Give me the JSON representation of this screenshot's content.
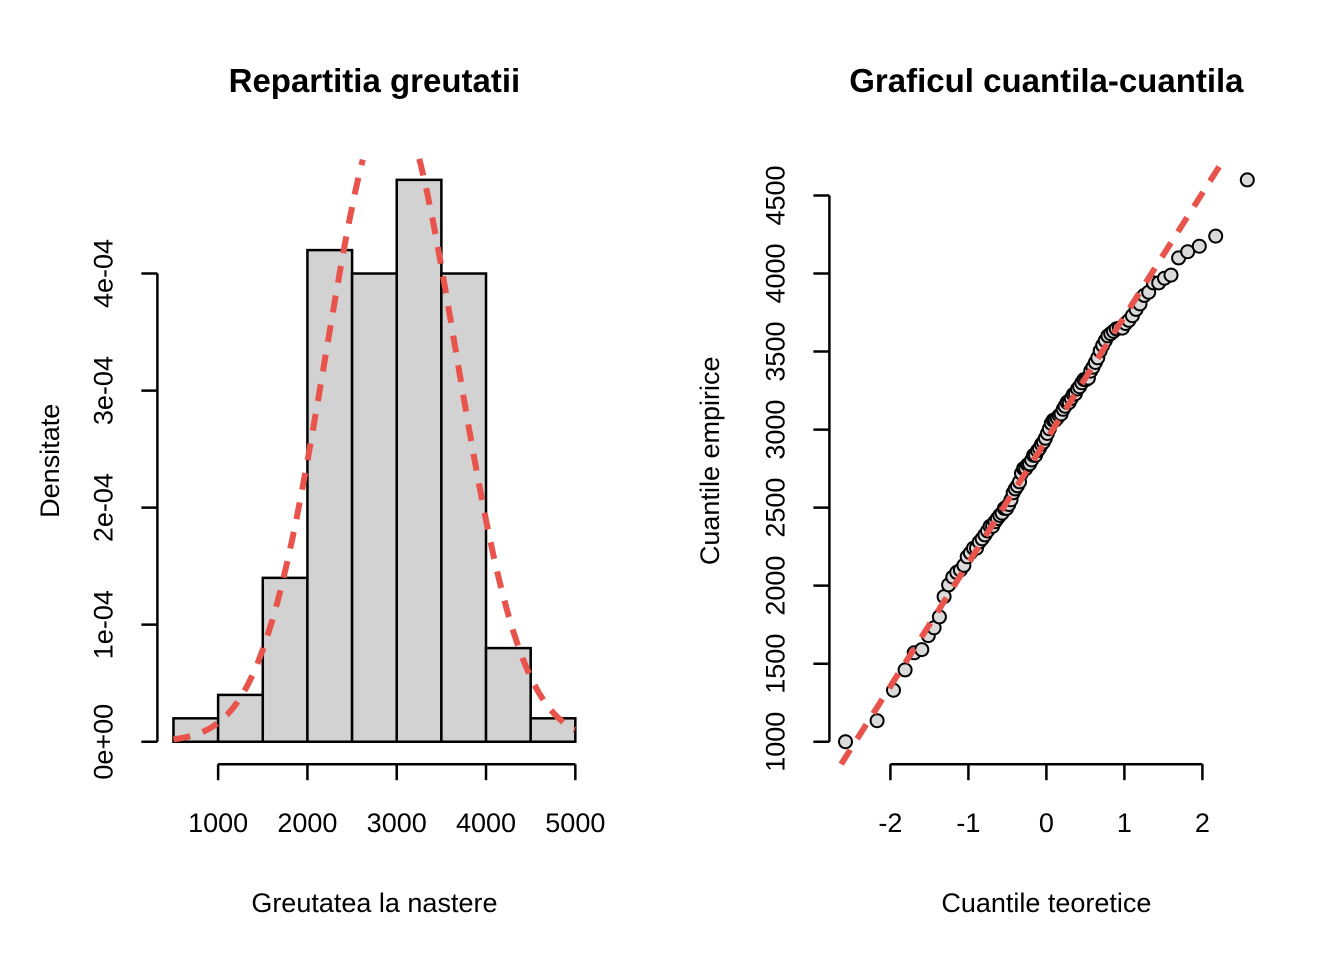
{
  "figure": {
    "background": "#FFFFFF",
    "colors": {
      "bar_fill": "#D2D2D2",
      "bar_border": "#000000",
      "axis": "#000000",
      "dashed_red": "#E8544B",
      "point_fill": "#DADADA",
      "point_border": "#000000"
    }
  },
  "left_panel": {
    "title": "Repartitia greutatii",
    "xlabel": "Greutatea la nastere",
    "ylabel": "Densitate",
    "x_tick_labels": [
      "1000",
      "2000",
      "3000",
      "4000",
      "5000"
    ],
    "y_tick_labels": [
      "0e+00",
      "1e-04",
      "2e-04",
      "3e-04",
      "4e-04"
    ]
  },
  "right_panel": {
    "title": "Graficul cuantila-cuantila",
    "xlabel": "Cuantile teoretice",
    "ylabel": "Cuantile empirice",
    "x_tick_labels": [
      "-2",
      "-1",
      "0",
      "1",
      "2"
    ],
    "y_tick_labels": [
      "1000",
      "1500",
      "2000",
      "2500",
      "3000",
      "3500",
      "4000",
      "4500"
    ]
  },
  "chart_data": [
    {
      "type": "bar",
      "subtype": "histogram-density-with-normal-curve",
      "title": "Repartitia greutatii",
      "xlabel": "Greutatea la nastere",
      "ylabel": "Densitate",
      "sample_size": 100,
      "bin_breaks": [
        500,
        1000,
        1500,
        2000,
        2500,
        3000,
        3500,
        4000,
        4500,
        5000
      ],
      "counts": [
        1,
        2,
        7,
        21,
        20,
        24,
        20,
        4,
        1
      ],
      "densities": [
        2e-05,
        4e-05,
        0.00014,
        0.00042,
        0.0004,
        0.00048,
        0.0004,
        8e-05,
        2e-05
      ],
      "x_ticks": [
        1000,
        2000,
        3000,
        4000,
        5000
      ],
      "y_ticks": [
        0,
        0.0001,
        0.0002,
        0.0003,
        0.0004
      ],
      "xlim": [
        500,
        5000
      ],
      "ylim": [
        0,
        0.00048
      ],
      "grid": false,
      "normal_curve": {
        "mean": 2937,
        "sd": 730,
        "style": "dashed",
        "color": "#E8544B"
      }
    },
    {
      "type": "scatter",
      "subtype": "normal-qq-plot",
      "title": "Graficul cuantila-cuantila",
      "xlabel": "Cuantile teoretice",
      "ylabel": "Cuantile empirice",
      "x_ticks": [
        -2,
        -1,
        0,
        1,
        2
      ],
      "y_ticks": [
        1000,
        1500,
        2000,
        2500,
        3000,
        3500,
        4000,
        4500
      ],
      "xlim": [
        -2.576,
        2.576
      ],
      "ylim": [
        1000,
        4600
      ],
      "grid": false,
      "theoretical": [
        -2.576,
        -2.17,
        -1.96,
        -1.812,
        -1.695,
        -1.598,
        -1.514,
        -1.44,
        -1.372,
        -1.311,
        -1.254,
        -1.2,
        -1.15,
        -1.103,
        -1.058,
        -1.015,
        -0.974,
        -0.935,
        -0.896,
        -0.86,
        -0.824,
        -0.789,
        -0.755,
        -0.722,
        -0.69,
        -0.659,
        -0.628,
        -0.598,
        -0.568,
        -0.539,
        -0.51,
        -0.482,
        -0.454,
        -0.426,
        -0.399,
        -0.372,
        -0.345,
        -0.319,
        -0.292,
        -0.266,
        -0.24,
        -0.215,
        -0.189,
        -0.164,
        -0.138,
        -0.113,
        -0.088,
        -0.063,
        -0.038,
        -0.013,
        0.013,
        0.038,
        0.063,
        0.088,
        0.113,
        0.138,
        0.164,
        0.189,
        0.215,
        0.24,
        0.266,
        0.292,
        0.319,
        0.345,
        0.372,
        0.399,
        0.426,
        0.454,
        0.482,
        0.51,
        0.539,
        0.568,
        0.598,
        0.628,
        0.659,
        0.69,
        0.722,
        0.755,
        0.789,
        0.824,
        0.86,
        0.896,
        0.935,
        0.974,
        1.015,
        1.058,
        1.103,
        1.15,
        1.2,
        1.254,
        1.311,
        1.372,
        1.44,
        1.514,
        1.598,
        1.695,
        1.812,
        1.96,
        2.17,
        2.576
      ],
      "empirical_sorted": [
        1000,
        1135,
        1330,
        1460,
        1570,
        1590,
        1680,
        1730,
        1800,
        1930,
        2005,
        2055,
        2085,
        2100,
        2130,
        2185,
        2210,
        2240,
        2240,
        2280,
        2300,
        2325,
        2350,
        2380,
        2380,
        2410,
        2430,
        2450,
        2465,
        2495,
        2495,
        2520,
        2550,
        2595,
        2620,
        2640,
        2665,
        2720,
        2750,
        2750,
        2775,
        2780,
        2805,
        2835,
        2835,
        2865,
        2880,
        2905,
        2920,
        2945,
        2975,
        3005,
        3040,
        3060,
        3060,
        3075,
        3090,
        3100,
        3130,
        3150,
        3175,
        3175,
        3200,
        3225,
        3230,
        3260,
        3275,
        3300,
        3320,
        3320,
        3330,
        3375,
        3400,
        3430,
        3460,
        3505,
        3540,
        3570,
        3600,
        3615,
        3630,
        3645,
        3650,
        3650,
        3680,
        3700,
        3730,
        3770,
        3805,
        3860,
        3880,
        3940,
        3940,
        3970,
        3990,
        4100,
        4140,
        4175,
        4240,
        4600
      ],
      "qq_line": {
        "intercept": 2935,
        "slope": 790,
        "style": "dashed",
        "color": "#E8544B"
      }
    }
  ]
}
